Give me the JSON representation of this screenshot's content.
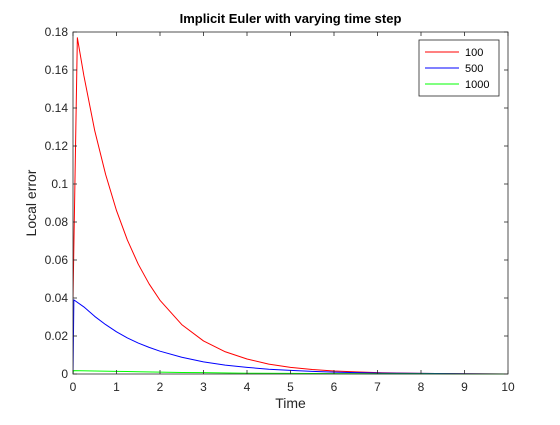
{
  "chart_data": {
    "type": "line",
    "title": "Implicit Euler with varying time step",
    "xlabel": "Time",
    "ylabel": "Local error",
    "xlim": [
      0,
      10
    ],
    "ylim": [
      0,
      0.18
    ],
    "xticks": [
      0,
      1,
      2,
      3,
      4,
      5,
      6,
      7,
      8,
      9,
      10
    ],
    "yticks": [
      0,
      0.02,
      0.04,
      0.06,
      0.08,
      0.1,
      0.12,
      0.14,
      0.16,
      0.18
    ],
    "xtick_labels": [
      "0",
      "1",
      "2",
      "3",
      "4",
      "5",
      "6",
      "7",
      "8",
      "9",
      "10"
    ],
    "ytick_labels": [
      "0",
      "0.02",
      "0.04",
      "0.06",
      "0.08",
      "0.1",
      "0.12",
      "0.14",
      "0.16",
      "0.18"
    ],
    "grid": false,
    "legend_position": "top-right",
    "series": [
      {
        "name": "100",
        "color": "#ff0000",
        "x": [
          0,
          0.1,
          0.25,
          0.5,
          0.75,
          1,
          1.25,
          1.5,
          1.75,
          2,
          2.5,
          3,
          3.5,
          4,
          4.5,
          5,
          5.5,
          6,
          6.5,
          7,
          8,
          9,
          10
        ],
        "y": [
          0.04,
          0.177,
          0.157,
          0.128,
          0.105,
          0.086,
          0.0705,
          0.0578,
          0.0474,
          0.0388,
          0.026,
          0.0174,
          0.0117,
          0.0079,
          0.0052,
          0.0035,
          0.0024,
          0.0016,
          0.0011,
          0.0007,
          0.0003,
          0.0001,
          0.0
        ]
      },
      {
        "name": "500",
        "color": "#0000ff",
        "x": [
          0,
          0.02,
          0.25,
          0.5,
          0.75,
          1,
          1.25,
          1.5,
          1.75,
          2,
          2.5,
          3,
          3.5,
          4,
          4.5,
          5,
          5.5,
          6,
          6.5,
          7,
          8,
          9,
          10
        ],
        "y": [
          0.0,
          0.039,
          0.0353,
          0.0303,
          0.026,
          0.0222,
          0.019,
          0.0163,
          0.014,
          0.012,
          0.0088,
          0.0064,
          0.0047,
          0.0035,
          0.0025,
          0.0019,
          0.0014,
          0.001,
          0.0007,
          0.0005,
          0.0003,
          0.0001,
          0.0
        ]
      },
      {
        "name": "1000",
        "color": "#00ff00",
        "x": [
          0,
          0.01,
          0.5,
          1,
          1.5,
          2,
          2.5,
          3,
          4,
          5,
          6,
          7,
          8,
          9,
          10
        ],
        "y": [
          0.0,
          0.0018,
          0.0016,
          0.0014,
          0.0012,
          0.001,
          0.0008,
          0.0007,
          0.0004,
          0.0003,
          0.0002,
          0.0001,
          0.0001,
          0.0,
          0.0
        ]
      }
    ]
  }
}
